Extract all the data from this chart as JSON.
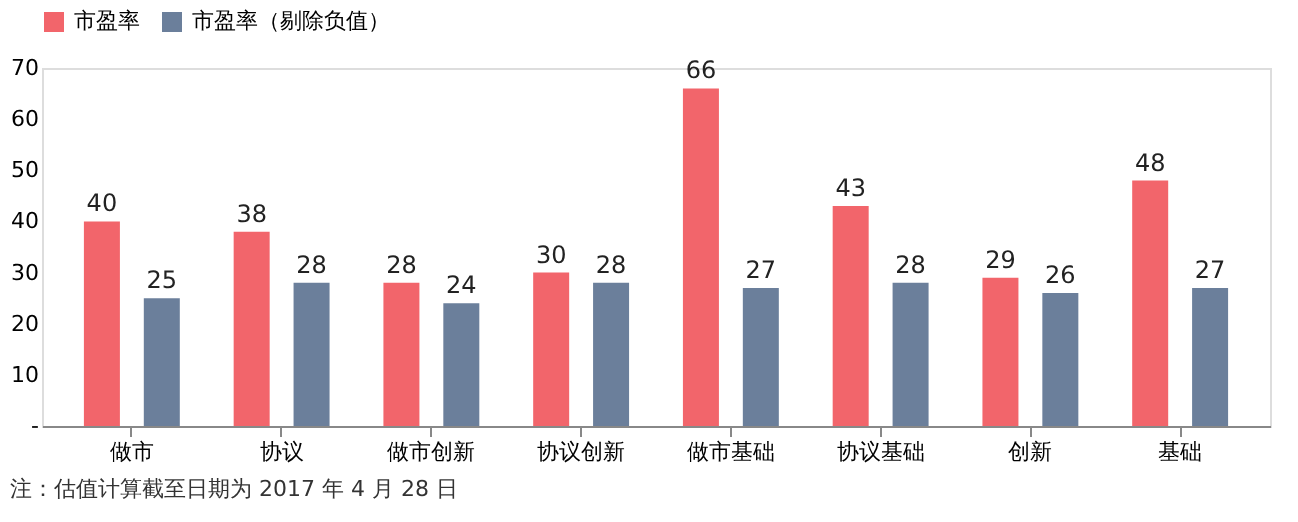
{
  "chart_data": {
    "type": "bar",
    "categories": [
      "做市",
      "协议",
      "做市创新",
      "协议创新",
      "做市基础",
      "协议基础",
      "创新",
      "基础"
    ],
    "series": [
      {
        "name": "市盈率",
        "color": "#f2656b",
        "values": [
          40,
          38,
          28,
          30,
          66,
          43,
          29,
          48
        ]
      },
      {
        "name": "市盈率（剔除负值）",
        "color": "#6b7f9b",
        "values": [
          25,
          28,
          24,
          28,
          27,
          28,
          26,
          27
        ]
      }
    ],
    "ylim": [
      0,
      70
    ],
    "yticks": [
      {
        "value": 0,
        "label": "-"
      },
      10,
      20,
      30,
      40,
      50,
      60,
      70
    ],
    "data_labels": true,
    "legend": "top",
    "grid": false,
    "annotations": [
      "注：估值计算截至日期为 2017 年 4 月 28 日"
    ]
  }
}
